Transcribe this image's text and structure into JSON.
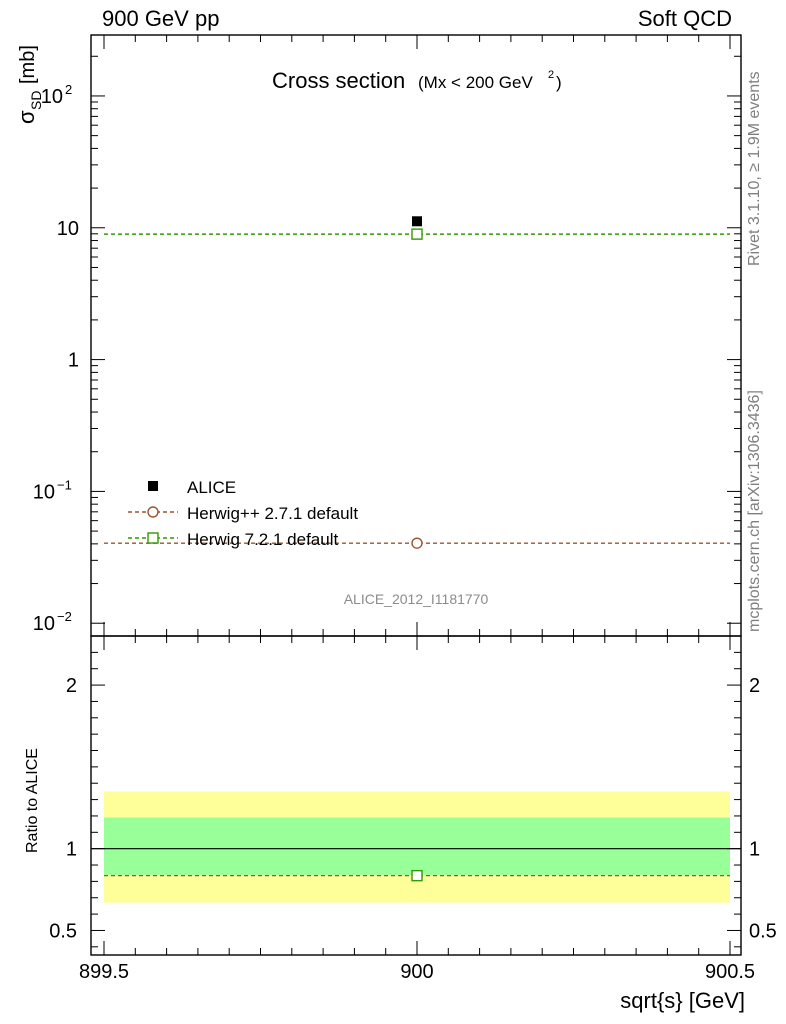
{
  "header": {
    "left": "900 GeV pp",
    "right": "Soft QCD"
  },
  "side_labels": {
    "rivet": "Rivet 3.1.10, ≥ 1.9M events",
    "mcplots": "mcplots.cern.ch [arXiv:1306.3436]"
  },
  "chart_data": [
    {
      "type": "scatter",
      "title": "Cross section",
      "title_suffix": "(Mx < 200 GeV",
      "title_suffix_sup": "2",
      "title_suffix_close": ")",
      "ylabel_main": "σ",
      "ylabel_sub": "SD",
      "ylabel_unit": "[mb]",
      "yscale": "log",
      "xlim": [
        899.5,
        900.5
      ],
      "ylim": [
        0.008,
        290
      ],
      "yticks": [
        {
          "value": 0.01,
          "base": "10",
          "exp": "−2"
        },
        {
          "value": 0.1,
          "base": "10",
          "exp": "−1"
        },
        {
          "value": 1,
          "base": "1",
          "exp": ""
        },
        {
          "value": 10,
          "base": "10",
          "exp": ""
        },
        {
          "value": 100,
          "base": "10",
          "exp": "2"
        }
      ],
      "series": [
        {
          "name": "ALICE",
          "marker": "filled-square",
          "color": "#000000",
          "x": [
            900
          ],
          "y": [
            11.2
          ],
          "style": "data"
        },
        {
          "name": "Herwig++ 2.7.1 default",
          "marker": "open-circle",
          "color": "#a0522d",
          "x": [
            900
          ],
          "y": [
            0.0405
          ],
          "style": "mc"
        },
        {
          "name": "Herwig 7.2.1 default",
          "marker": "open-square",
          "color": "#339900",
          "x": [
            900
          ],
          "y": [
            8.95
          ],
          "style": "mc"
        }
      ],
      "legend_position": "bottom-left",
      "annotation": "ALICE_2012_I1181770"
    },
    {
      "type": "scatter",
      "ylabel": "Ratio to ALICE",
      "xlabel": "sqrt{s} [GeV]",
      "xlim": [
        899.5,
        900.5
      ],
      "ylim": [
        0.35,
        2.3
      ],
      "xticks": [
        "899.5",
        "900",
        "900.5"
      ],
      "xtick_values": [
        899.5,
        900,
        900.5
      ],
      "yticks": [
        {
          "value": 0.5,
          "label": "0.5"
        },
        {
          "value": 1,
          "label": "1"
        },
        {
          "value": 2,
          "label": "2"
        }
      ],
      "bands": [
        {
          "name": "total-uncertainty",
          "color": "#ffff99",
          "low": 0.67,
          "high": 1.35
        },
        {
          "name": "stat-uncertainty",
          "color": "#99ff99",
          "low": 0.84,
          "high": 1.19
        }
      ],
      "reference_line": 1,
      "series": [
        {
          "name": "Herwig 7.2.1 default",
          "marker": "open-square",
          "color": "#339900",
          "x": [
            900
          ],
          "y": [
            0.835
          ]
        }
      ]
    }
  ]
}
